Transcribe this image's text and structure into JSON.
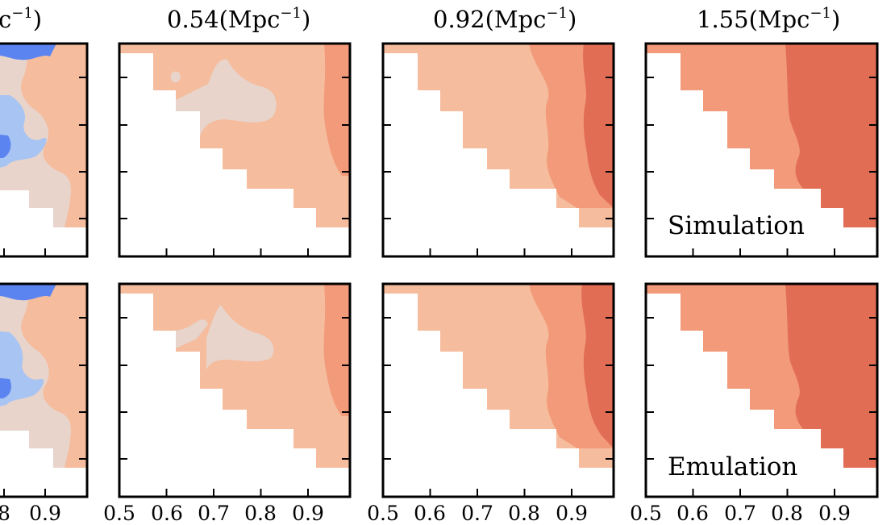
{
  "chart_data": {
    "type": "heatmap",
    "description_of_fills": "filled contour maps; upper-left triangular region is blank (no data)",
    "x_tick_labels_left_fragment": [
      "8",
      "0.9"
    ],
    "x_tick_labels": [
      "0.5",
      "0.6",
      "0.7",
      "0.8",
      "0.9"
    ],
    "xlim": [
      0.5,
      1.0
    ],
    "column_titles": [
      "c$^{-1}$)",
      "0.54(Mpc$^{-1}$)",
      "0.92(Mpc$^{-1}$)",
      "1.55(Mpc$^{-1}$)"
    ],
    "column_title_text": [
      {
        "base": "c",
        "sup": "−1",
        "tail": ")"
      },
      {
        "base": "0.54(Mpc",
        "sup": "−1",
        "tail": ")"
      },
      {
        "base": "0.92(Mpc",
        "sup": "−1",
        "tail": ")"
      },
      {
        "base": "1.55(Mpc",
        "sup": "−1",
        "tail": ")"
      }
    ],
    "row_labels": [
      "Simulation",
      "Emulation"
    ],
    "palette": {
      "deep_blue": "#5b84f0",
      "light_blue": "#a8c4f2",
      "pale": "#e8d4cb",
      "light_salmon": "#f5bc9d",
      "salmon": "#f29a79",
      "red": "#e26d55"
    }
  }
}
